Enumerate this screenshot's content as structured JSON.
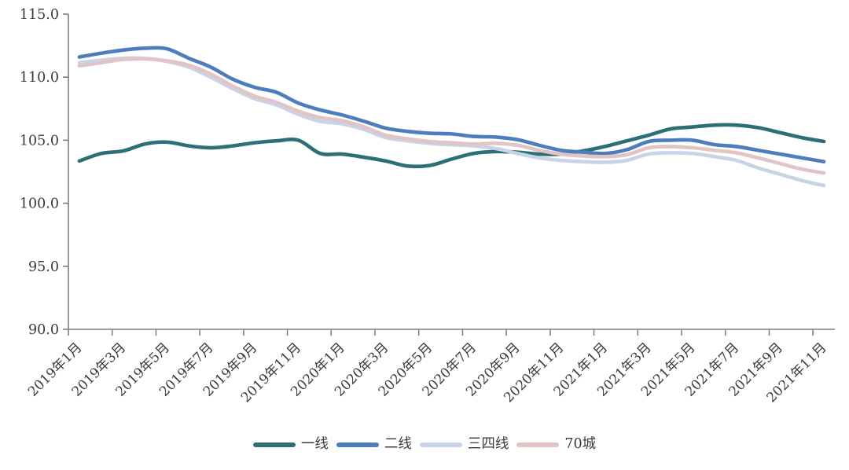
{
  "chart_data": {
    "type": "line",
    "title": "",
    "legend_position": "bottom",
    "grid": false,
    "x_categories": [
      "2019-01",
      "2019-02",
      "2019-03",
      "2019-04",
      "2019-05",
      "2019-06",
      "2019-07",
      "2019-08",
      "2019-09",
      "2019-10",
      "2019-11",
      "2019-12",
      "2020-01",
      "2020-02",
      "2020-03",
      "2020-04",
      "2020-05",
      "2020-06",
      "2020-07",
      "2020-08",
      "2020-09",
      "2020-10",
      "2020-11",
      "2020-12",
      "2021-01",
      "2021-02",
      "2021-03",
      "2021-04",
      "2021-05",
      "2021-06",
      "2021-07",
      "2021-08",
      "2021-09",
      "2021-10",
      "2021-11"
    ],
    "x_tick_labels": [
      "2019年1月",
      "2019年3月",
      "2019年5月",
      "2019年7月",
      "2019年9月",
      "2019年11月",
      "2020年1月",
      "2020年3月",
      "2020年5月",
      "2020年7月",
      "2020年9月",
      "2020年11月",
      "2021年1月",
      "2021年3月",
      "2021年5月",
      "2021年7月",
      "2021年9月",
      "2021年11月"
    ],
    "x_tick_interval_months": 2,
    "y_axis": {
      "min": 90.0,
      "max": 115.0,
      "tick_step": 5.0,
      "tick_labels": [
        "115.0",
        "110.0",
        "105.0",
        "100.0",
        "95.0",
        "90.0"
      ]
    },
    "axis_color": "#7f7f7f",
    "label_color": "#3a3a3a",
    "series": [
      {
        "name": "一线",
        "key": "first-tier",
        "color": "#2c6f75",
        "values": [
          103.35,
          103.95,
          104.15,
          104.7,
          104.85,
          104.55,
          104.4,
          104.55,
          104.8,
          104.95,
          105.0,
          103.95,
          103.9,
          103.65,
          103.35,
          102.95,
          103.0,
          103.5,
          103.95,
          104.1,
          104.05,
          103.9,
          103.9,
          104.15,
          104.5,
          104.95,
          105.4,
          105.9,
          106.05,
          106.2,
          106.2,
          106.0,
          105.6,
          105.2,
          104.9
        ]
      },
      {
        "name": "二线",
        "key": "second-tier",
        "color": "#4c7dbd",
        "values": [
          111.6,
          111.9,
          112.15,
          112.3,
          112.25,
          111.5,
          110.8,
          109.85,
          109.2,
          108.8,
          107.95,
          107.4,
          107.0,
          106.5,
          105.95,
          105.7,
          105.55,
          105.5,
          105.3,
          105.25,
          105.05,
          104.6,
          104.2,
          104.05,
          103.95,
          104.25,
          104.9,
          105.0,
          105.0,
          104.65,
          104.5,
          104.2,
          103.9,
          103.6,
          103.3
        ]
      },
      {
        "name": "三四线",
        "key": "third-fourth-tier",
        "color": "#c9d3e8",
        "values": [
          111.15,
          111.35,
          111.5,
          111.5,
          111.25,
          110.8,
          110.0,
          109.1,
          108.3,
          107.8,
          107.05,
          106.5,
          106.3,
          105.85,
          105.2,
          104.95,
          104.75,
          104.65,
          104.55,
          104.35,
          103.95,
          103.6,
          103.4,
          103.3,
          103.25,
          103.4,
          103.9,
          104.0,
          103.95,
          103.7,
          103.4,
          102.8,
          102.3,
          101.8,
          101.4
        ]
      },
      {
        "name": "70城",
        "key": "70-cities",
        "color": "#e2c4c6",
        "values": [
          110.9,
          111.15,
          111.4,
          111.45,
          111.3,
          110.95,
          110.25,
          109.3,
          108.5,
          108.0,
          107.3,
          106.8,
          106.55,
          106.05,
          105.4,
          105.1,
          104.9,
          104.8,
          104.7,
          104.75,
          104.6,
          104.2,
          103.9,
          103.75,
          103.7,
          103.85,
          104.4,
          104.5,
          104.4,
          104.2,
          104.0,
          103.6,
          103.15,
          102.7,
          102.4
        ]
      }
    ]
  }
}
